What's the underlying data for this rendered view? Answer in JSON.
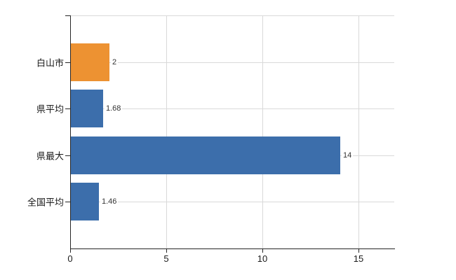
{
  "chart_data": {
    "type": "bar",
    "orientation": "horizontal",
    "title": "",
    "xlabel": "",
    "ylabel": "",
    "categories": [
      "白山市",
      "県平均",
      "県最大",
      "全国平均"
    ],
    "values": [
      2,
      1.68,
      14,
      1.46
    ],
    "value_labels": [
      "2",
      "1.68",
      "14",
      "1.46"
    ],
    "bar_colors": [
      "#ED9232",
      "#3C6EAB",
      "#3C6EAB",
      "#3C6EAB"
    ],
    "x_ticks": [
      "0",
      "5",
      "10",
      "15"
    ],
    "x_tick_values": [
      0,
      5,
      10,
      15
    ],
    "xlim": [
      0,
      16.86
    ],
    "grid": true,
    "legend": false
  },
  "colors": {
    "highlight_bar": "#ED9232",
    "default_bar": "#3C6EAB",
    "gridline": "#D9D9D9",
    "axis": "#262626",
    "value_label": "#333333",
    "background": "#FFFFFF"
  }
}
